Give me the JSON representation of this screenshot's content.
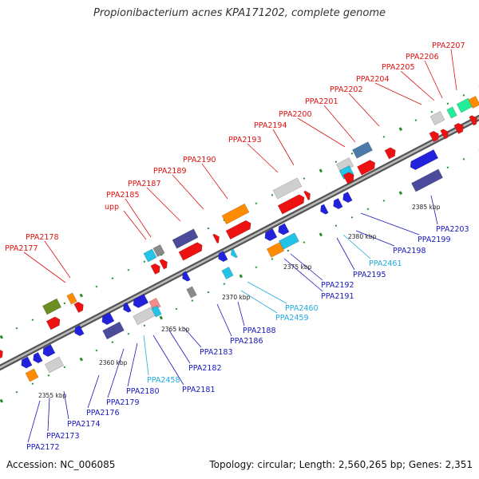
{
  "title": "Propionibacterium acnes KPA171202, complete genome",
  "footer": {
    "accession": "Accession: NC_006085",
    "summary": "Topology: circular; Length: 2,560,265 bp; Genes: 2,351"
  },
  "colors": {
    "backbone": "#888888",
    "label_red": "#dd1111",
    "label_blue": "#1818bb",
    "label_cyan": "#22aadd",
    "tick": "#2e8b2e"
  },
  "kbp_ticks": [
    "2355 kbp",
    "2360 kbp",
    "2365 kbp",
    "2370 kbp",
    "2375 kbp",
    "2380 kbp",
    "2385 kbp"
  ],
  "labels_top": [
    "PPA2177",
    "PPA2178",
    "upp",
    "PPA2185",
    "PPA2187",
    "PPA2189",
    "PPA2190",
    "PPA2193",
    "PPA2194",
    "PPA2200",
    "PPA2201",
    "PPA2202",
    "PPA2204",
    "PPA2205",
    "PPA2206",
    "PPA2207"
  ],
  "labels_bottom": [
    {
      "text": "PPA2172",
      "color": "blue"
    },
    {
      "text": "PPA2173",
      "color": "blue"
    },
    {
      "text": "PPA2174",
      "color": "blue"
    },
    {
      "text": "PPA2176",
      "color": "blue"
    },
    {
      "text": "PPA2179",
      "color": "blue"
    },
    {
      "text": "PPA2180",
      "color": "blue"
    },
    {
      "text": "PPA2458",
      "color": "cyan"
    },
    {
      "text": "PPA2181",
      "color": "blue"
    },
    {
      "text": "PPA2182",
      "color": "blue"
    },
    {
      "text": "PPA2183",
      "color": "blue"
    },
    {
      "text": "PPA2186",
      "color": "blue"
    },
    {
      "text": "PPA2188",
      "color": "blue"
    },
    {
      "text": "PPA2459",
      "color": "cyan"
    },
    {
      "text": "PPA2460",
      "color": "cyan"
    },
    {
      "text": "PPA2191",
      "color": "blue"
    },
    {
      "text": "PPA2192",
      "color": "blue"
    },
    {
      "text": "PPA2195",
      "color": "blue"
    },
    {
      "text": "PPA2461",
      "color": "cyan"
    },
    {
      "text": "PPA2198",
      "color": "blue"
    },
    {
      "text": "PPA2199",
      "color": "blue"
    },
    {
      "text": "PPA2203",
      "color": "blue"
    }
  ]
}
